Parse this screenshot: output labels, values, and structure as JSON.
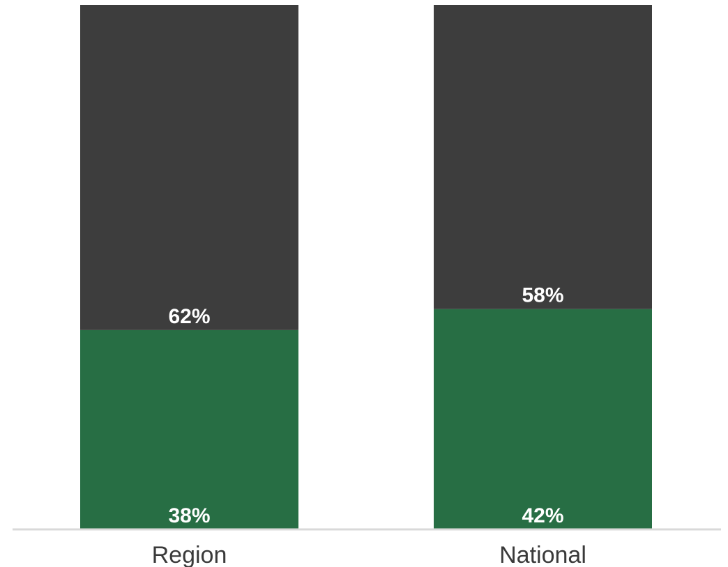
{
  "chart_data": {
    "type": "bar",
    "stacked": true,
    "normalized_percent": true,
    "categories": [
      "Region",
      "National"
    ],
    "series": [
      {
        "values": [
          38,
          42
        ],
        "labels": [
          "38%",
          "42%"
        ],
        "color": "#276e44"
      },
      {
        "values": [
          62,
          58
        ],
        "labels": [
          "62%",
          "58%"
        ],
        "color": "#3d3d3d"
      }
    ],
    "ylim": [
      0,
      100
    ],
    "grid": false,
    "legend": "none",
    "axis_color": "#d9d9d9"
  }
}
